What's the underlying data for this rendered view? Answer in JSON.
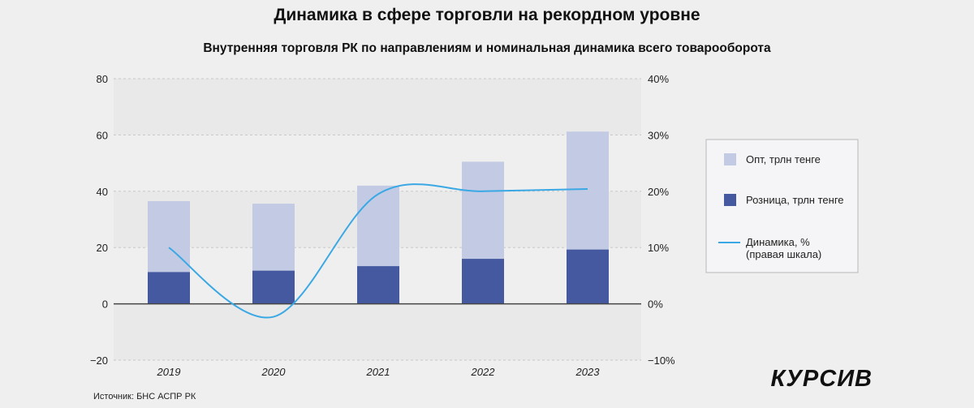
{
  "chart_data": {
    "type": "bar",
    "stacked": true,
    "title": "Динамика в сфере торговли на рекордном уровне",
    "subtitle": "Внутренняя торговля РК по направлениям и номинальная динамика всего товарооборота",
    "categories": [
      "2019",
      "2020",
      "2021",
      "2022",
      "2023"
    ],
    "series": [
      {
        "name": "Розница, трлн тенге",
        "kind": "bar",
        "axis": "left",
        "color": "#4459a0",
        "values": [
          11.3,
          11.8,
          13.4,
          16.0,
          19.3
        ]
      },
      {
        "name": "Опт, трлн тенге",
        "kind": "bar",
        "axis": "left",
        "color": "#c3cbe4",
        "values": [
          25.2,
          23.8,
          28.6,
          34.5,
          41.9
        ]
      },
      {
        "name": "Динамика, %",
        "name_line2": "(правая шкала)",
        "kind": "line",
        "axis": "right",
        "color": "#3aa8e4",
        "values": [
          10.0,
          -2.3,
          19.5,
          20.0,
          20.4
        ]
      }
    ],
    "ylim": [
      -20,
      80
    ],
    "y_ticks": [
      "80",
      "60",
      "40",
      "20",
      "0",
      "−20"
    ],
    "y2lim": [
      -10,
      40
    ],
    "y2_ticks": [
      "40%",
      "30%",
      "20%",
      "10%",
      "0%",
      "−10%"
    ],
    "grid": true,
    "legend": "right"
  },
  "source": "Источник: БНС АСПР РК",
  "logo": "КУРСИВ"
}
